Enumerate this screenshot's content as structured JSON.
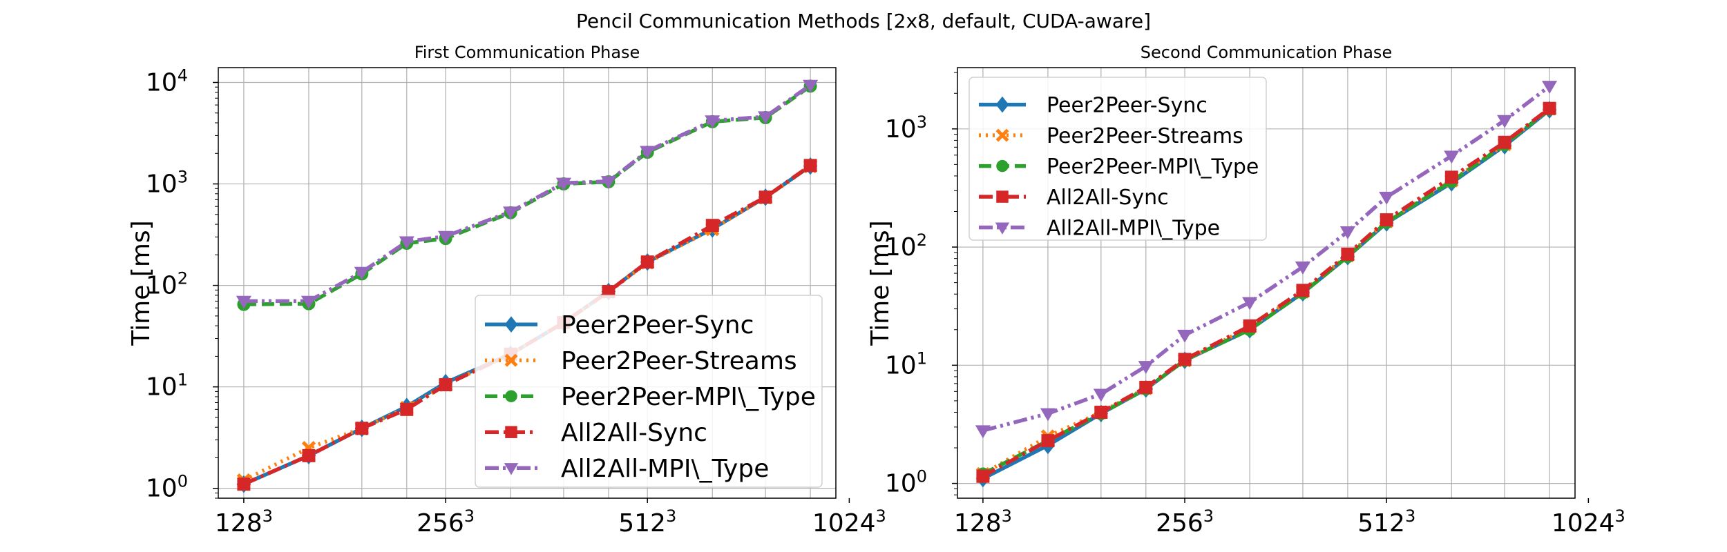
{
  "figure": {
    "title": "Pencil Communication Methods [2x8, default, CUDA-aware]"
  },
  "chart_data": [
    {
      "type": "line",
      "title": "First Communication Phase",
      "xlabel": "",
      "ylabel": "Time [ms]",
      "yscale": "log",
      "ylim": [
        0.8,
        14000
      ],
      "x": [
        128,
        160,
        192,
        224,
        256,
        320,
        384,
        448,
        512,
        640,
        768,
        896
      ],
      "xticks": [
        {
          "base": "128",
          "exp": "3",
          "x": 128
        },
        {
          "base": "256",
          "exp": "3",
          "x": 256
        },
        {
          "base": "512",
          "exp": "3",
          "x": 512
        },
        {
          "base": "1024",
          "exp": "3",
          "x": 1024
        }
      ],
      "yticks": [
        {
          "base": "10",
          "exp": "0",
          "y": 1
        },
        {
          "base": "10",
          "exp": "1",
          "y": 10
        },
        {
          "base": "10",
          "exp": "2",
          "y": 100
        },
        {
          "base": "10",
          "exp": "3",
          "y": 1000
        },
        {
          "base": "10",
          "exp": "4",
          "y": 10000
        }
      ],
      "grid": true,
      "legend_position": "lower-right",
      "series": [
        {
          "name": "Peer2Peer-Sync",
          "color": "#1f77b4",
          "linestyle": "solid",
          "marker": "diamond",
          "values": [
            1.1,
            2.1,
            3.9,
            6.4,
            11,
            21,
            43,
            87,
            170,
            360,
            740,
            1500
          ]
        },
        {
          "name": "Peer2Peer-Streams",
          "color": "#ff7f0e",
          "linestyle": "dotted",
          "marker": "x",
          "values": [
            1.2,
            2.5,
            3.9,
            6.2,
            10.5,
            21,
            43,
            86,
            168,
            358,
            735,
            1490
          ]
        },
        {
          "name": "Peer2Peer-MPI\\_Type",
          "color": "#2ca02c",
          "linestyle": "dashed",
          "marker": "circle",
          "values": [
            65,
            66,
            130,
            260,
            290,
            520,
            1000,
            1050,
            2050,
            4100,
            4500,
            9200
          ]
        },
        {
          "name": "All2All-Sync",
          "color": "#d62728",
          "linestyle": "dashdot",
          "marker": "square",
          "values": [
            1.1,
            2.1,
            3.9,
            6.0,
            10.5,
            21,
            43,
            87,
            170,
            390,
            740,
            1520
          ]
        },
        {
          "name": "All2All-MPI\\_Type",
          "color": "#9467bd",
          "linestyle": "dashdotdot",
          "marker": "triangle-down",
          "values": [
            70,
            70,
            135,
            270,
            305,
            530,
            1020,
            1060,
            2100,
            4200,
            4600,
            9400
          ]
        }
      ]
    },
    {
      "type": "line",
      "title": "Second Communication Phase",
      "xlabel": "",
      "ylabel": "Time [ms]",
      "yscale": "log",
      "ylim": [
        0.75,
        3300
      ],
      "x": [
        128,
        160,
        192,
        224,
        256,
        320,
        384,
        448,
        512,
        640,
        768,
        896
      ],
      "xticks": [
        {
          "base": "128",
          "exp": "3",
          "x": 128
        },
        {
          "base": "256",
          "exp": "3",
          "x": 256
        },
        {
          "base": "512",
          "exp": "3",
          "x": 512
        },
        {
          "base": "1024",
          "exp": "3",
          "x": 1024
        }
      ],
      "yticks": [
        {
          "base": "10",
          "exp": "0",
          "y": 1
        },
        {
          "base": "10",
          "exp": "1",
          "y": 10
        },
        {
          "base": "10",
          "exp": "2",
          "y": 100
        },
        {
          "base": "10",
          "exp": "3",
          "y": 1000
        }
      ],
      "grid": true,
      "legend_position": "upper-left",
      "series": [
        {
          "name": "Peer2Peer-Sync",
          "color": "#1f77b4",
          "linestyle": "solid",
          "marker": "diamond",
          "values": [
            1.1,
            2.1,
            3.9,
            6.3,
            11,
            20,
            41,
            83,
            160,
            350,
            720,
            1450
          ]
        },
        {
          "name": "Peer2Peer-Streams",
          "color": "#ff7f0e",
          "linestyle": "dotted",
          "marker": "x",
          "values": [
            1.2,
            2.5,
            4.0,
            6.4,
            11,
            21,
            42,
            85,
            165,
            365,
            740,
            1480
          ]
        },
        {
          "name": "Peer2Peer-MPI\\_Type",
          "color": "#2ca02c",
          "linestyle": "dashed",
          "marker": "circle",
          "values": [
            1.2,
            2.3,
            3.9,
            6.3,
            11,
            20,
            41,
            83,
            162,
            360,
            735,
            1470
          ]
        },
        {
          "name": "All2All-Sync",
          "color": "#d62728",
          "linestyle": "dashdot",
          "marker": "square",
          "values": [
            1.15,
            2.3,
            4.0,
            6.5,
            11.2,
            21.5,
            43,
            87,
            170,
            390,
            770,
            1490
          ]
        },
        {
          "name": "All2All-MPI\\_Type",
          "color": "#9467bd",
          "linestyle": "dashdotdot",
          "marker": "triangle-down",
          "values": [
            2.8,
            3.9,
            5.7,
            9.8,
            18,
            34,
            68,
            135,
            265,
            590,
            1180,
            2300
          ]
        }
      ]
    }
  ]
}
